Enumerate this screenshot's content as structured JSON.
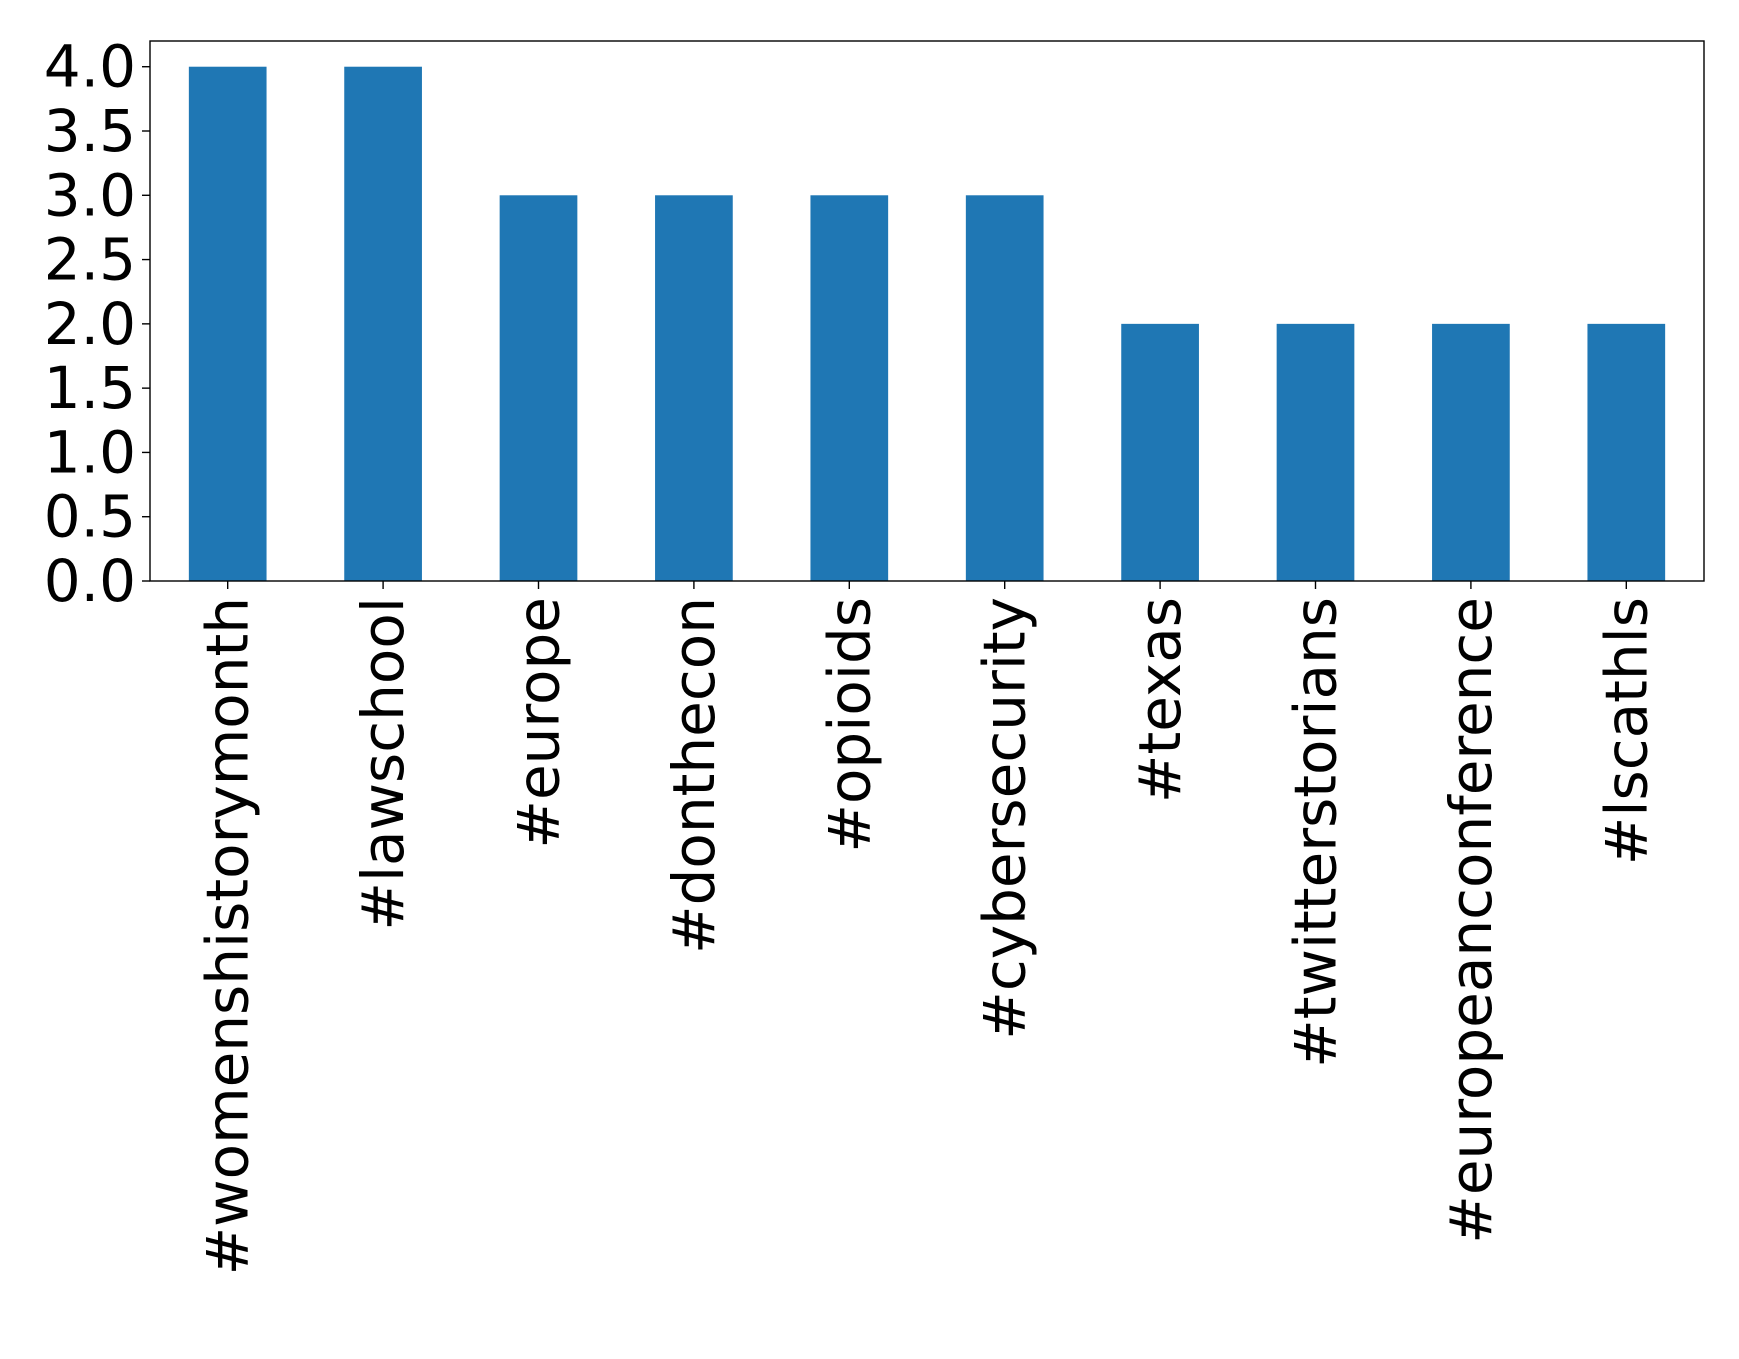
{
  "chart_data": {
    "type": "bar",
    "categories": [
      "#womenshistorymonth",
      "#lawschool",
      "#europe",
      "#donthecon",
      "#opioids",
      "#cybersecurity",
      "#texas",
      "#twitterstorians",
      "#europeanconference",
      "#lscathls"
    ],
    "values": [
      4,
      4,
      3,
      3,
      3,
      3,
      2,
      2,
      2,
      2
    ],
    "yticks": [
      "0.0",
      "0.5",
      "1.0",
      "1.5",
      "2.0",
      "2.5",
      "3.0",
      "3.5",
      "4.0"
    ],
    "ylim": [
      0,
      4.2
    ],
    "grid": false,
    "legend": "none",
    "colors": {
      "bar": "#1f77b4"
    }
  }
}
